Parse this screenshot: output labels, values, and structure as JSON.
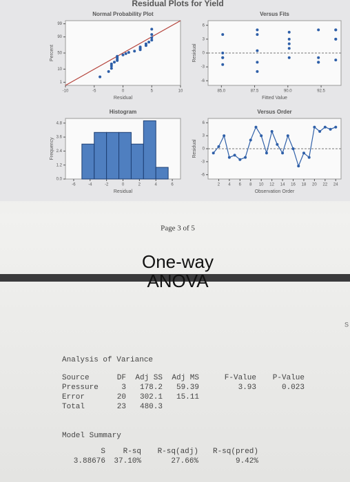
{
  "residual_plots": {
    "title": "Residual Plots for Yield",
    "panels": [
      {
        "type": "probability",
        "title": "Normal Probability Plot",
        "xlabel": "Residual",
        "ylabel": "Percent",
        "xlim": [
          -10,
          10
        ],
        "ylim": [
          0.5,
          99.5
        ],
        "xticks": [
          -10,
          -5,
          0,
          5,
          10
        ],
        "yticks": [
          1,
          10,
          50,
          90,
          99
        ],
        "x": [
          -4,
          -2.5,
          -2,
          -2,
          -2,
          -1.5,
          -1,
          -1,
          -1,
          -1,
          0,
          0.5,
          1,
          2,
          3,
          3,
          3,
          4,
          4,
          4.5,
          5,
          5,
          5,
          5
        ],
        "y": [
          2.9,
          7.0,
          11.1,
          15.2,
          19.3,
          23.4,
          27.5,
          31.6,
          35.7,
          39.8,
          43.9,
          48.0,
          52.0,
          56.1,
          60.2,
          64.3,
          68.4,
          72.5,
          76.6,
          80.7,
          84.8,
          88.9,
          93.0,
          97.1
        ]
      },
      {
        "type": "scatter",
        "title": "Versus Fits",
        "xlabel": "Fitted Value",
        "ylabel": "Residual",
        "xlim": [
          84,
          94
        ],
        "ylim": [
          -7,
          7
        ],
        "xticks": [
          {
            "value": 85,
            "label": "85.0"
          },
          {
            "value": 87.5,
            "label": "87.5"
          },
          {
            "value": 90,
            "label": "90.0"
          },
          {
            "value": 92.5,
            "label": "92.5"
          }
        ],
        "yticks": [
          -6,
          -3,
          0,
          3,
          6
        ],
        "x": [
          85.1,
          87.7,
          90.1,
          92.3,
          93.6,
          85.1,
          87.7,
          90.1,
          92.3,
          93.6,
          85.1,
          87.7,
          90.1,
          92.3,
          93.6,
          85.1,
          87.7,
          90.1,
          92.3,
          93.6,
          85.1,
          87.7,
          90.1,
          93.6
        ],
        "y": [
          -1,
          0.5,
          3,
          -2,
          -1.5,
          -2.5,
          -2,
          2,
          5,
          3,
          -1,
          4,
          1,
          -1,
          3,
          0,
          -4,
          -1,
          -2,
          5,
          4,
          5,
          4.5,
          5
        ]
      },
      {
        "type": "histogram",
        "title": "Histogram",
        "xlabel": "Residual",
        "ylabel": "Frequency",
        "xlim": [
          -7,
          7
        ],
        "ylim": [
          0,
          5.2
        ],
        "xticks": [
          -6,
          -4,
          -2,
          0,
          2,
          4,
          6
        ],
        "yticks": [
          {
            "value": 0,
            "label": "0.0"
          },
          1.2,
          2.4,
          3.6,
          4.8
        ],
        "bins": [
          -5,
          -3.5,
          -2,
          -0.5,
          1,
          2.5,
          4,
          5.5
        ],
        "counts": [
          3,
          4,
          4,
          4,
          3,
          5,
          1
        ]
      },
      {
        "type": "line",
        "title": "Versus Order",
        "xlabel": "Observation Order",
        "ylabel": "Residual",
        "xlim": [
          0,
          25
        ],
        "ylim": [
          -7,
          7
        ],
        "xticks": [
          2,
          4,
          6,
          8,
          10,
          12,
          14,
          16,
          18,
          20,
          22,
          24
        ],
        "yticks": [
          -6,
          -3,
          0,
          3,
          6
        ],
        "x": [
          1,
          2,
          3,
          4,
          5,
          6,
          7,
          8,
          9,
          10,
          11,
          12,
          13,
          14,
          15,
          16,
          17,
          18,
          19,
          20,
          21,
          22,
          23,
          24
        ],
        "y": [
          -1,
          0.5,
          3,
          -2,
          -1.5,
          -2.5,
          -2,
          2,
          5,
          3,
          -1,
          4,
          1,
          -1,
          3,
          0,
          -4,
          -1,
          -2,
          5,
          4,
          5,
          4.5,
          5
        ]
      }
    ]
  },
  "page_number": "Page 3 of 5",
  "heading": [
    "One-way",
    "ANOVA"
  ],
  "margin_letter": "S",
  "anova": {
    "title": "Analysis of Variance",
    "header": [
      "Source",
      "DF",
      "Adj SS",
      "Adj MS",
      "F-Value",
      "P-Value"
    ],
    "rows": [
      [
        "Pressure",
        "3",
        "178.2",
        "59.39",
        "3.93",
        "0.023"
      ],
      [
        "Error",
        "20",
        "302.1",
        "15.11"
      ],
      [
        "Total",
        "23",
        "480.3"
      ]
    ]
  },
  "model_summary": {
    "title": "Model Summary",
    "header": [
      "S",
      "R-sq",
      "R-sq(adj)",
      "R-sq(pred)"
    ],
    "values": [
      "3.88676",
      "37.10%",
      "27.66%",
      "9.42%"
    ]
  }
}
